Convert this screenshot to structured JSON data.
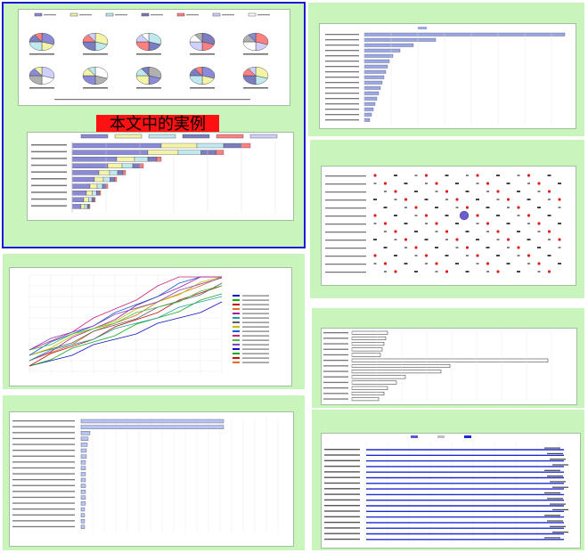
{
  "colors": {
    "panel_bg": "#c9f5bd",
    "selection_border": "#1a1adb",
    "label_bg": "#ff1111",
    "bar_blue": "#1e2bcf",
    "dot_red": "#e02020"
  },
  "overlay_label": "本文中的実例",
  "panels": {
    "pies": {
      "name": "pie-grid-panel",
      "pie_count": 10
    },
    "rank": {
      "name": "ranking-panel"
    },
    "matrix": {
      "name": "dot-matrix-panel"
    },
    "trend": {
      "name": "line-trend-panel"
    },
    "hbar": {
      "name": "horizontal-bar-panel"
    },
    "gantt": {
      "name": "gantt-panel"
    }
  }
}
